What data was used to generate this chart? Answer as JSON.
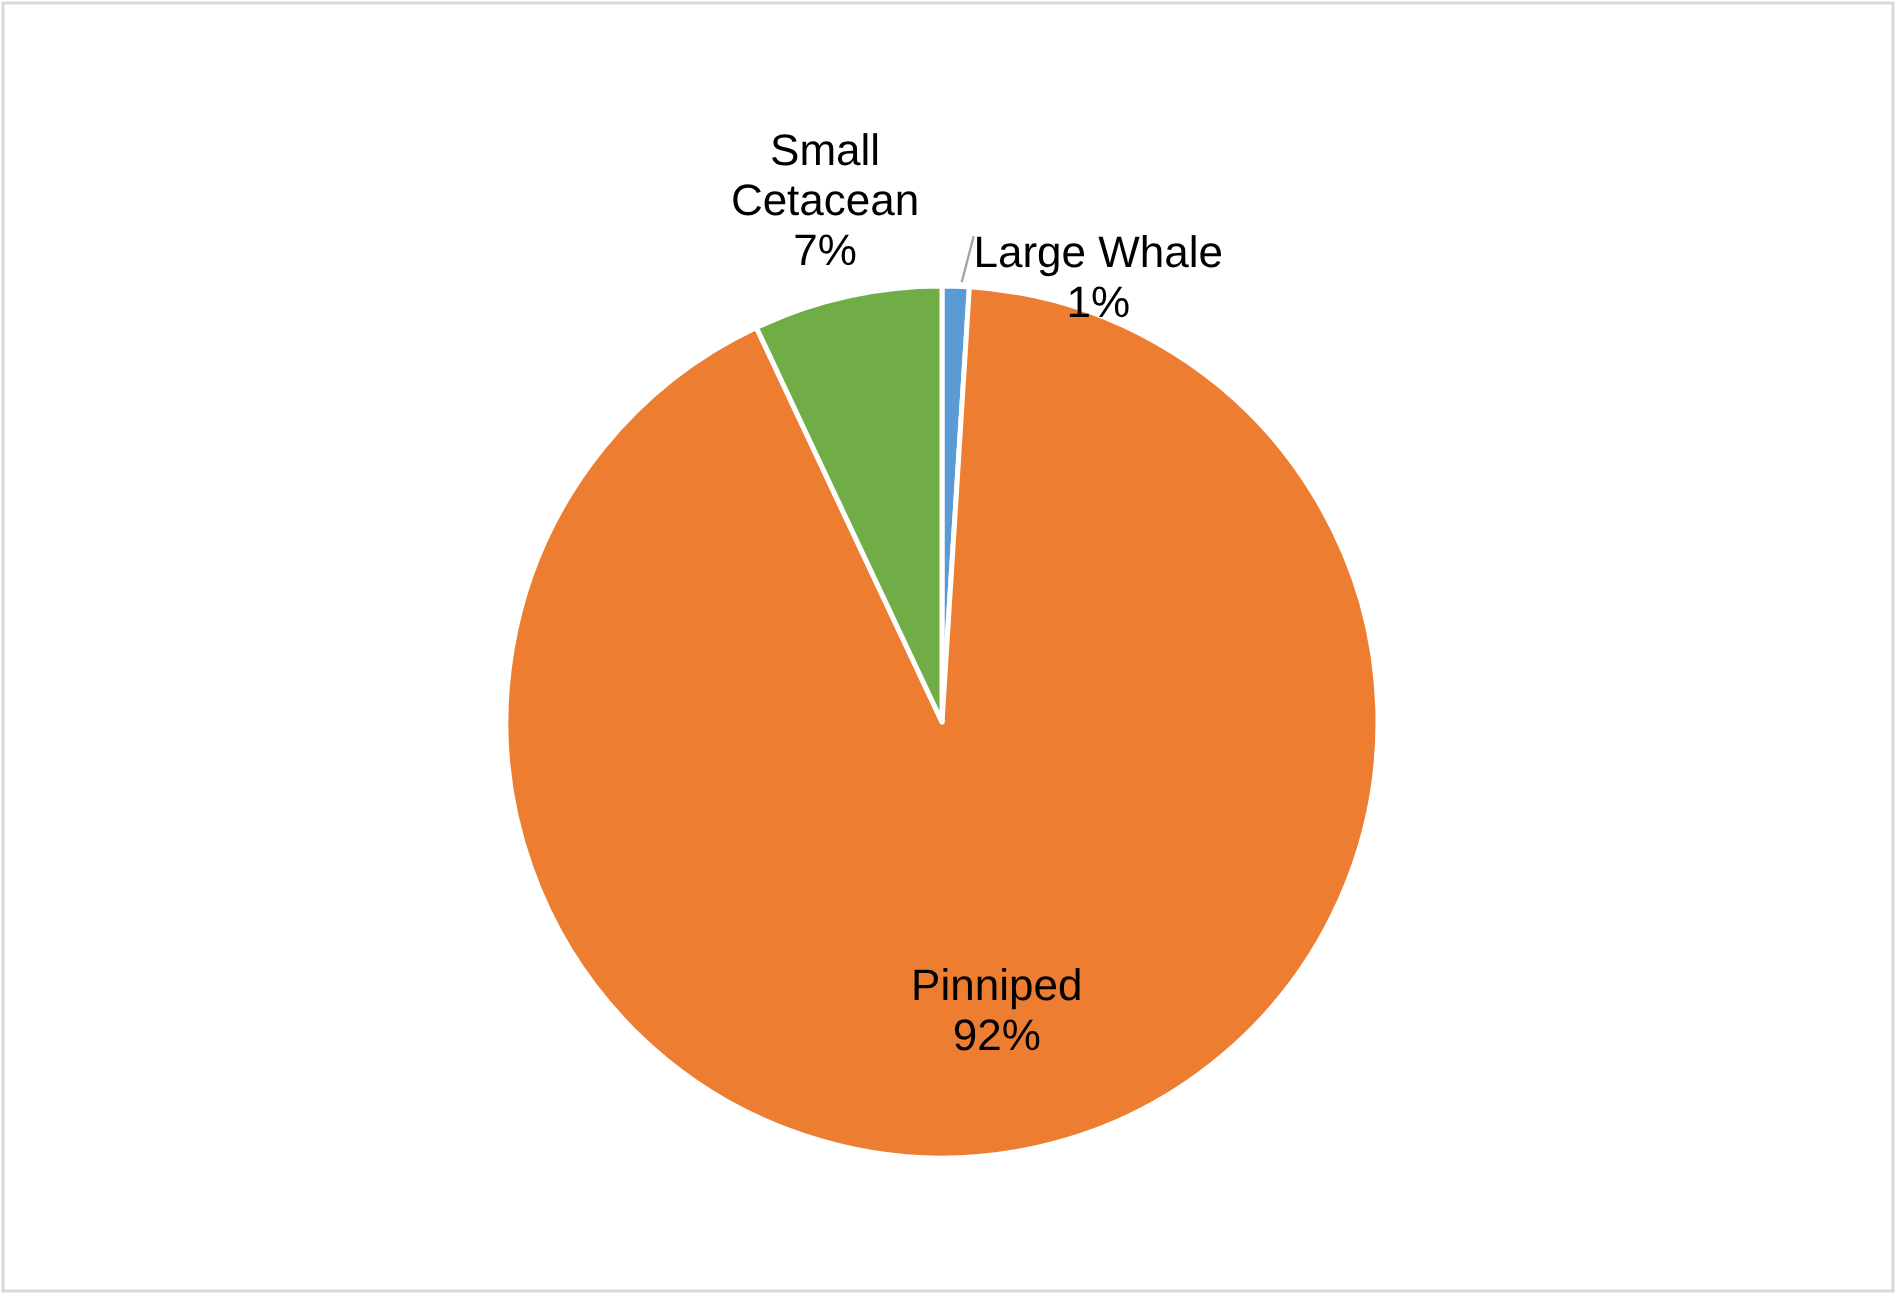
{
  "chart_data": {
    "type": "pie",
    "categories": [
      "Large Whale",
      "Pinniped",
      "Small Cetacean"
    ],
    "values": [
      1,
      92,
      7
    ],
    "colors": [
      "#5b9bd5",
      "#ed7d31",
      "#70ad47"
    ],
    "value_labels": [
      "1%",
      "92%",
      "7%"
    ]
  }
}
